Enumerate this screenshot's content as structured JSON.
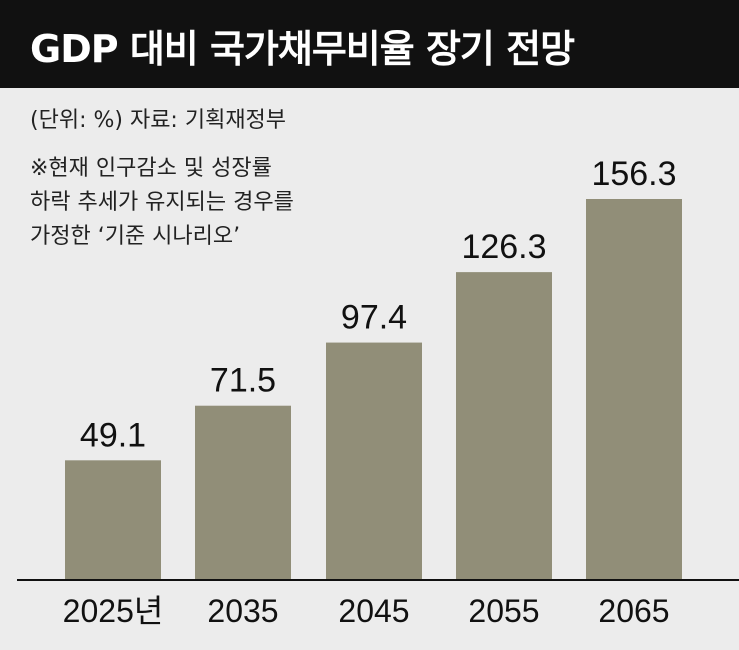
{
  "chart_data": {
    "type": "bar",
    "title": "GDP 대비 국가채무비율 장기 전망",
    "unit_source": "(단위: %)  자료: 기획재정부",
    "notes": [
      "※현재 인구감소 및 성장률",
      "하락 추세가 유지되는 경우를",
      "가정한 ‘기준 시나리오’"
    ],
    "categories": [
      "2025년",
      "2035",
      "2045",
      "2055",
      "2065"
    ],
    "values": [
      49.1,
      71.5,
      97.4,
      126.3,
      156.3
    ],
    "value_labels": [
      "49.1",
      "71.5",
      "97.4",
      "126.3",
      "156.3"
    ],
    "ylim": [
      0,
      160
    ],
    "xlabel": "",
    "ylabel": "",
    "bar_color": "#918e78"
  }
}
